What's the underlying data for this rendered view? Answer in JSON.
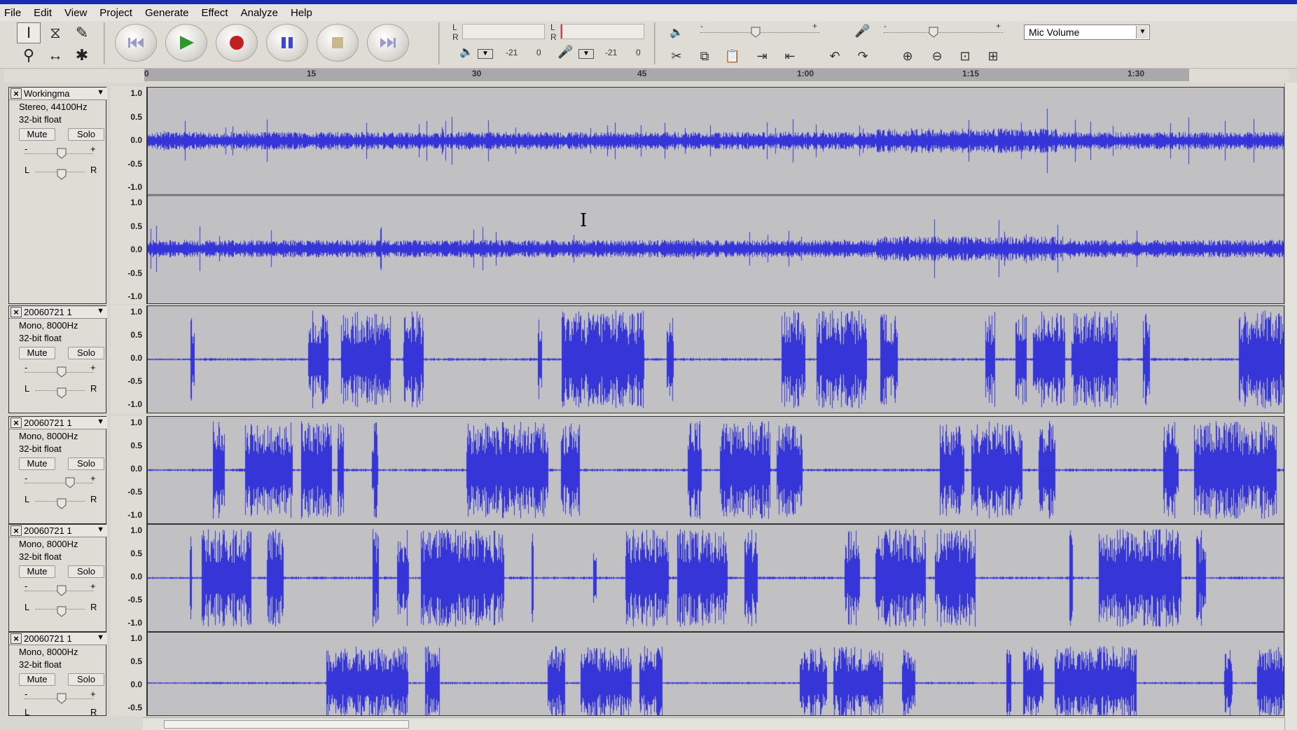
{
  "menu": [
    "File",
    "Edit",
    "View",
    "Project",
    "Generate",
    "Effect",
    "Analyze",
    "Help"
  ],
  "toolbar": {
    "tools": [
      {
        "name": "selection-tool-icon",
        "glyph": "I"
      },
      {
        "name": "envelope-tool-icon",
        "glyph": "⧖"
      },
      {
        "name": "draw-tool-icon",
        "glyph": "✎"
      },
      {
        "name": "zoom-tool-icon",
        "glyph": "⚲"
      },
      {
        "name": "timeshift-tool-icon",
        "glyph": "↔"
      },
      {
        "name": "multi-tool-icon",
        "glyph": "✱"
      }
    ],
    "meter": {
      "left_channel": "L",
      "right_channel": "R",
      "playback_db": "-21",
      "playback_zero": "0",
      "record_db": "-21",
      "record_zero": "0"
    },
    "mixer": {
      "minus": "-",
      "plus": "+"
    },
    "input_source": "Mic Volume"
  },
  "ruler": {
    "labels": [
      "0",
      "15",
      "30",
      "45",
      "1:00",
      "1:15",
      "1:30"
    ]
  },
  "tracks": [
    {
      "name": "Workingma",
      "format": "Stereo, 44100Hz",
      "depth": "32-bit float",
      "mute": "Mute",
      "solo": "Solo",
      "gain_minus": "-",
      "gain_plus": "+",
      "pan_left": "L",
      "pan_right": "R",
      "scale_top": [
        "1.0",
        "0.5",
        "0.0",
        "-0.5",
        "-1.0"
      ],
      "scale_bottom": [
        "1.0",
        "0.5",
        "0.0",
        "-0.5",
        "-1.0"
      ]
    },
    {
      "name": "20060721 1",
      "format": "Mono, 8000Hz",
      "depth": "32-bit float",
      "mute": "Mute",
      "solo": "Solo",
      "gain_minus": "-",
      "gain_plus": "+",
      "pan_left": "L",
      "pan_right": "R",
      "scale_top": [
        "1.0",
        "0.5",
        "0.0",
        "-0.5",
        "-1.0"
      ]
    },
    {
      "name": "20060721 1",
      "format": "Mono, 8000Hz",
      "depth": "32-bit float",
      "mute": "Mute",
      "solo": "Solo",
      "gain_minus": "-",
      "gain_plus": "+",
      "pan_left": "L",
      "pan_right": "R",
      "scale_top": [
        "1.0",
        "0.5",
        "0.0",
        "-0.5",
        "-1.0"
      ]
    },
    {
      "name": "20060721 1",
      "format": "Mono, 8000Hz",
      "depth": "32-bit float",
      "mute": "Mute",
      "solo": "Solo",
      "gain_minus": "-",
      "gain_plus": "+",
      "pan_left": "L",
      "pan_right": "R",
      "scale_top": [
        "1.0",
        "0.5",
        "0.0",
        "-0.5",
        "-1.0"
      ]
    },
    {
      "name": "20060721 1",
      "format": "Mono, 8000Hz",
      "depth": "32-bit float",
      "mute": "Mute",
      "solo": "Solo",
      "gain_minus": "-",
      "gain_plus": "+",
      "pan_left": "L",
      "pan_right": "R",
      "scale_top": [
        "1.0",
        "0.5",
        "0.0",
        "-0.5"
      ]
    }
  ],
  "colors": {
    "waveform": "#3535d8",
    "wave_background": "#c1c1c4",
    "play": "#2a9a2a",
    "record": "#c02020",
    "pause": "#3a4ad0"
  }
}
